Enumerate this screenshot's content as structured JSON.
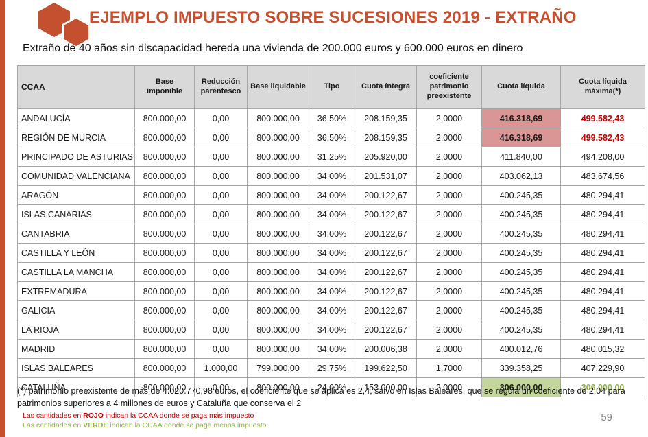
{
  "slide": {
    "title": "EJEMPLO IMPUESTO SOBRE SUCESIONES 2019 - EXTRAÑO",
    "subtitle": "Extraño de 40 años sin discapacidad hereda una vivienda de 200.000 euros y 600.000 euros en dinero",
    "footnote": "(*) patrimonio preexistente de más de 4.020.770,98 euros, el coeficiente que se aplica es 2,4, salvo en Islas Baleares, que se regula un coeficiente de 2,04  para patrimonios superiores a 4 millones de euros y Cataluña que conserva el 2",
    "page_number": "59",
    "legend": {
      "red_prefix": "Las cantidades en ",
      "red_keyword": "ROJO",
      "red_suffix": " indican la CCAA donde se paga más impuesto",
      "green_prefix": "Las cantidades en ",
      "green_keyword": "VERDE",
      "green_suffix": " indican la CCAA donde se paga menos impuesto"
    }
  },
  "colors": {
    "accent_orange": "#C4502F",
    "highlight_red_bg": "#D99694",
    "highlight_green_bg": "#C3D69B",
    "text_red": "#C00000",
    "text_green": "#94B34A",
    "header_bg": "#D9D9D9"
  },
  "icons": {
    "logo": "hexagons-logo"
  },
  "table": {
    "headers": [
      "CCAA",
      "Base imponible",
      "Reducción parentesco",
      "Base liquidable",
      "Tipo",
      "Cuota íntegra",
      "coeficiente patrimonio preexistente",
      "Cuota líquida",
      "Cuota líquida máxima(*)"
    ],
    "rows": [
      {
        "ccaa": "ANDALUCÍA",
        "base_imponible": "800.000,00",
        "reduccion": "0,00",
        "base_liquidable": "800.000,00",
        "tipo": "36,50%",
        "cuota_integra": "208.159,35",
        "coeficiente": "2,0000",
        "cuota_liquida": "416.318,69",
        "cuota_maxima": "499.582,43",
        "liquida_style": "hl-red",
        "maxima_style": "txt-red"
      },
      {
        "ccaa": "REGIÓN DE MURCIA",
        "base_imponible": "800.000,00",
        "reduccion": "0,00",
        "base_liquidable": "800.000,00",
        "tipo": "36,50%",
        "cuota_integra": "208.159,35",
        "coeficiente": "2,0000",
        "cuota_liquida": "416.318,69",
        "cuota_maxima": "499.582,43",
        "liquida_style": "hl-red",
        "maxima_style": "txt-red"
      },
      {
        "ccaa": "PRINCIPADO DE ASTURIAS",
        "base_imponible": "800.000,00",
        "reduccion": "0,00",
        "base_liquidable": "800.000,00",
        "tipo": "31,25%",
        "cuota_integra": "205.920,00",
        "coeficiente": "2,0000",
        "cuota_liquida": "411.840,00",
        "cuota_maxima": "494.208,00",
        "liquida_style": null,
        "maxima_style": null
      },
      {
        "ccaa": "COMUNIDAD VALENCIANA",
        "base_imponible": "800.000,00",
        "reduccion": "0,00",
        "base_liquidable": "800.000,00",
        "tipo": "34,00%",
        "cuota_integra": "201.531,07",
        "coeficiente": "2,0000",
        "cuota_liquida": "403.062,13",
        "cuota_maxima": "483.674,56",
        "liquida_style": null,
        "maxima_style": null
      },
      {
        "ccaa": "ARAGÓN",
        "base_imponible": "800.000,00",
        "reduccion": "0,00",
        "base_liquidable": "800.000,00",
        "tipo": "34,00%",
        "cuota_integra": "200.122,67",
        "coeficiente": "2,0000",
        "cuota_liquida": "400.245,35",
        "cuota_maxima": "480.294,41",
        "liquida_style": null,
        "maxima_style": null
      },
      {
        "ccaa": "ISLAS CANARIAS",
        "base_imponible": "800.000,00",
        "reduccion": "0,00",
        "base_liquidable": "800.000,00",
        "tipo": "34,00%",
        "cuota_integra": "200.122,67",
        "coeficiente": "2,0000",
        "cuota_liquida": "400.245,35",
        "cuota_maxima": "480.294,41",
        "liquida_style": null,
        "maxima_style": null
      },
      {
        "ccaa": "CANTABRIA",
        "base_imponible": "800.000,00",
        "reduccion": "0,00",
        "base_liquidable": "800.000,00",
        "tipo": "34,00%",
        "cuota_integra": "200.122,67",
        "coeficiente": "2,0000",
        "cuota_liquida": "400.245,35",
        "cuota_maxima": "480.294,41",
        "liquida_style": null,
        "maxima_style": null
      },
      {
        "ccaa": "CASTILLA Y LEÓN",
        "base_imponible": "800.000,00",
        "reduccion": "0,00",
        "base_liquidable": "800.000,00",
        "tipo": "34,00%",
        "cuota_integra": "200.122,67",
        "coeficiente": "2,0000",
        "cuota_liquida": "400.245,35",
        "cuota_maxima": "480.294,41",
        "liquida_style": null,
        "maxima_style": null
      },
      {
        "ccaa": "CASTILLA LA MANCHA",
        "base_imponible": "800.000,00",
        "reduccion": "0,00",
        "base_liquidable": "800.000,00",
        "tipo": "34,00%",
        "cuota_integra": "200.122,67",
        "coeficiente": "2,0000",
        "cuota_liquida": "400.245,35",
        "cuota_maxima": "480.294,41",
        "liquida_style": null,
        "maxima_style": null
      },
      {
        "ccaa": "EXTREMADURA",
        "base_imponible": "800.000,00",
        "reduccion": "0,00",
        "base_liquidable": "800.000,00",
        "tipo": "34,00%",
        "cuota_integra": "200.122,67",
        "coeficiente": "2,0000",
        "cuota_liquida": "400.245,35",
        "cuota_maxima": "480.294,41",
        "liquida_style": null,
        "maxima_style": null
      },
      {
        "ccaa": "GALICIA",
        "base_imponible": "800.000,00",
        "reduccion": "0,00",
        "base_liquidable": "800.000,00",
        "tipo": "34,00%",
        "cuota_integra": "200.122,67",
        "coeficiente": "2,0000",
        "cuota_liquida": "400.245,35",
        "cuota_maxima": "480.294,41",
        "liquida_style": null,
        "maxima_style": null
      },
      {
        "ccaa": "LA RIOJA",
        "base_imponible": "800.000,00",
        "reduccion": "0,00",
        "base_liquidable": "800.000,00",
        "tipo": "34,00%",
        "cuota_integra": "200.122,67",
        "coeficiente": "2,0000",
        "cuota_liquida": "400.245,35",
        "cuota_maxima": "480.294,41",
        "liquida_style": null,
        "maxima_style": null
      },
      {
        "ccaa": "MADRID",
        "base_imponible": "800.000,00",
        "reduccion": "0,00",
        "base_liquidable": "800.000,00",
        "tipo": "34,00%",
        "cuota_integra": "200.006,38",
        "coeficiente": "2,0000",
        "cuota_liquida": "400.012,76",
        "cuota_maxima": "480.015,32",
        "liquida_style": null,
        "maxima_style": null
      },
      {
        "ccaa": "ISLAS BALEARES",
        "base_imponible": "800.000,00",
        "reduccion": "1.000,00",
        "base_liquidable": "799.000,00",
        "tipo": "29,75%",
        "cuota_integra": "199.622,50",
        "coeficiente": "1,7000",
        "cuota_liquida": "339.358,25",
        "cuota_maxima": "407.229,90",
        "liquida_style": null,
        "maxima_style": null
      },
      {
        "ccaa": "CATALUÑA",
        "base_imponible": "800.000,00",
        "reduccion": "0,00",
        "base_liquidable": "800.000,00",
        "tipo": "24,00%",
        "cuota_integra": "153.000,00",
        "coeficiente": "2,0000",
        "cuota_liquida": "306.000,00",
        "cuota_maxima": "306.000,00",
        "liquida_style": "hl-green",
        "maxima_style": "txt-green"
      }
    ]
  }
}
